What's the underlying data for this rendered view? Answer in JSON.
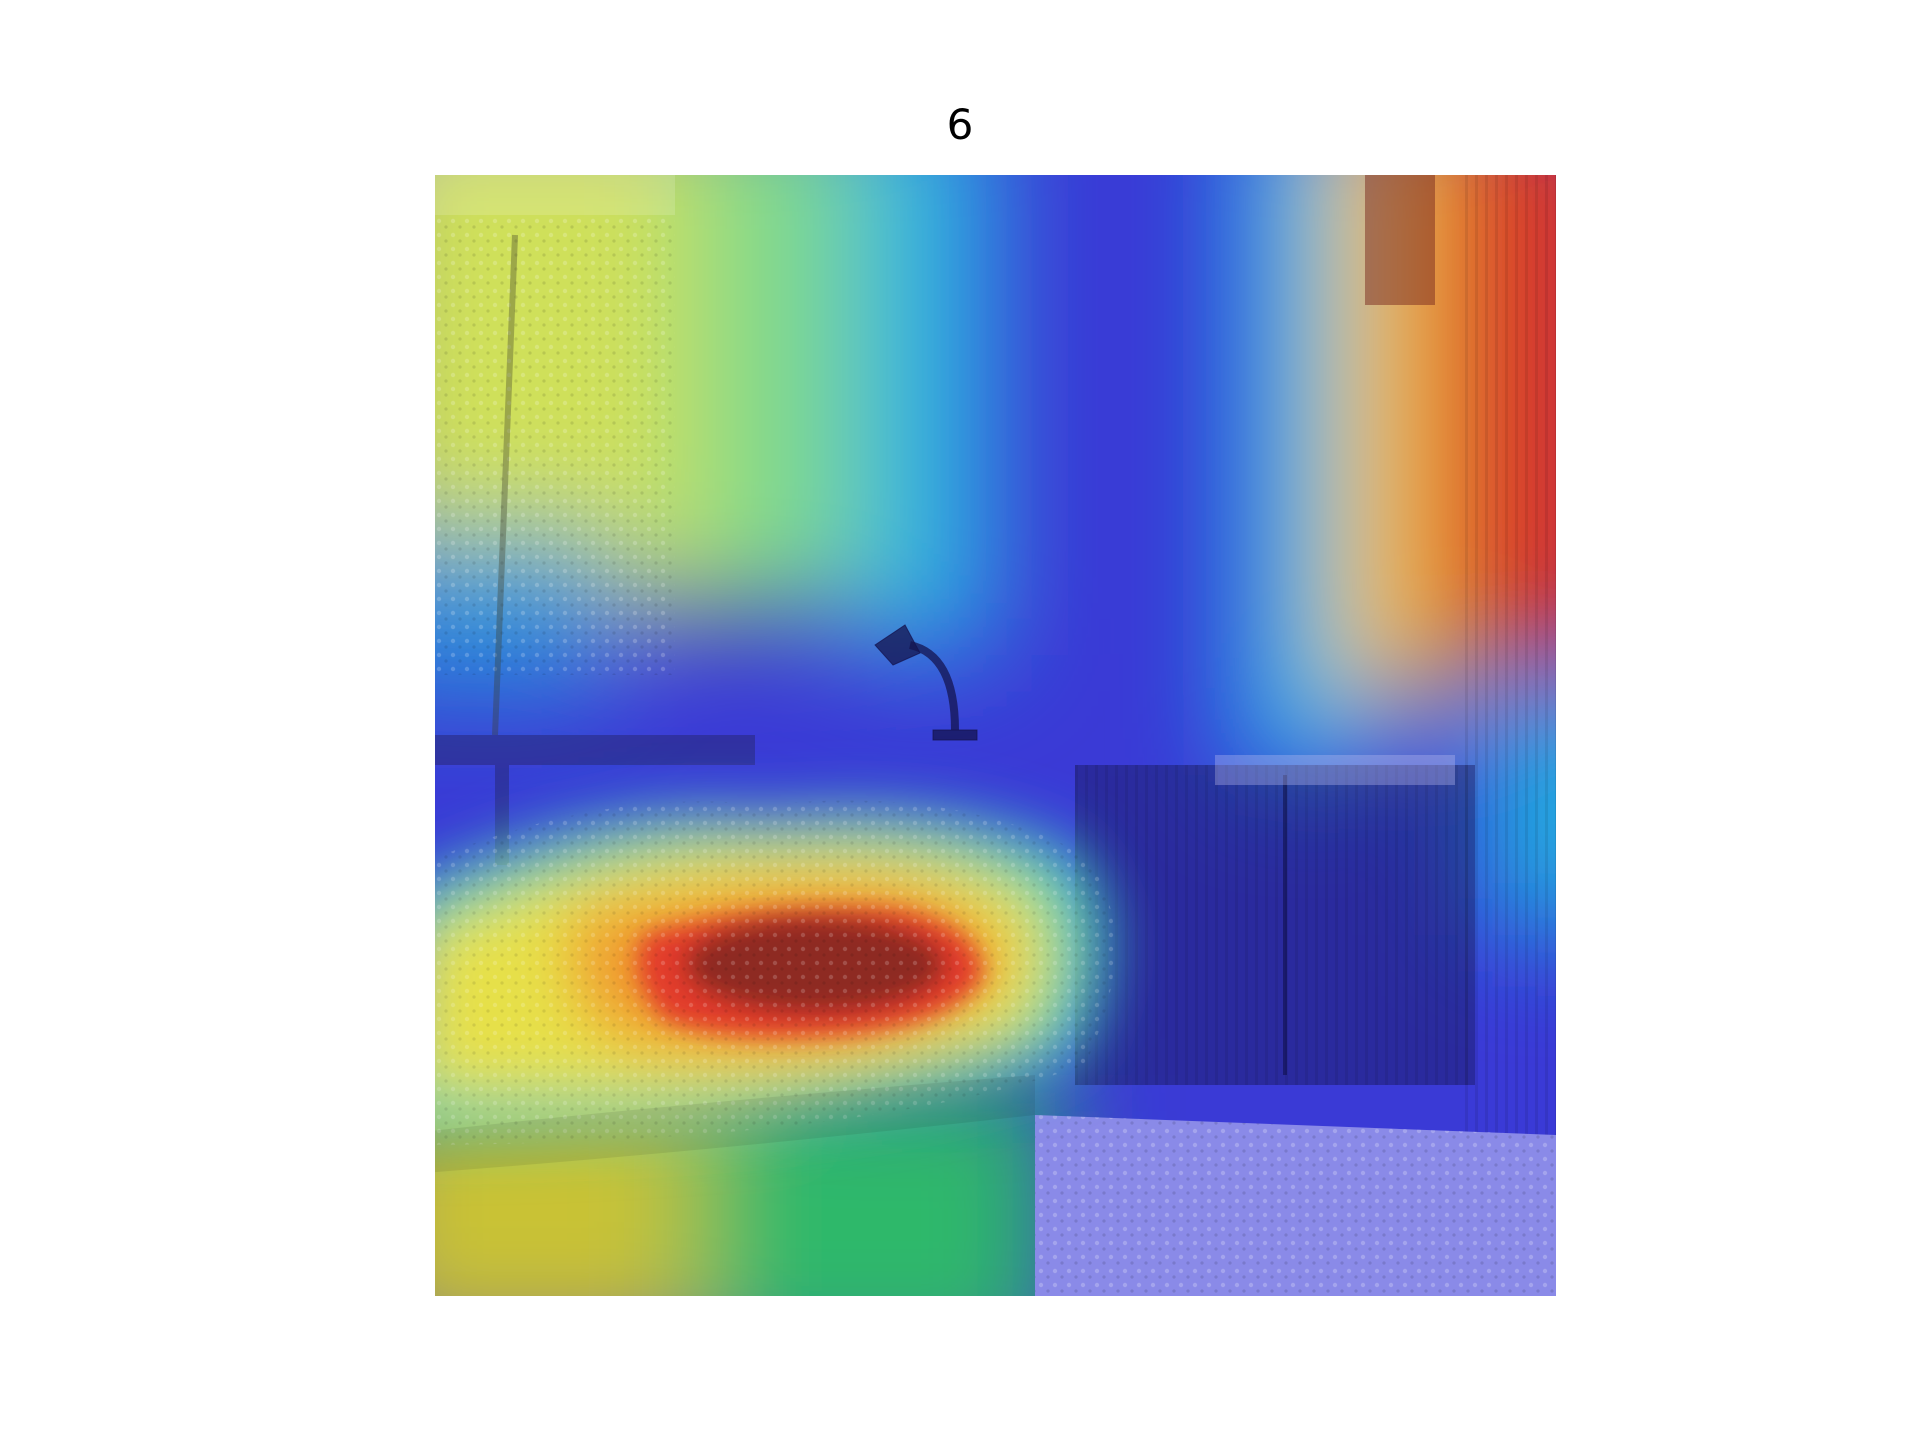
{
  "figure": {
    "title": "6",
    "image": {
      "description_icon": "attention-heatmap-overlay",
      "colormap": "jet",
      "colors": {
        "low": "#2f2fd0",
        "mid_low": "#19a7d8",
        "mid": "#3fcf6a",
        "mid_high": "#e9e24a",
        "high": "#e33a2a",
        "peak": "#8e2a22"
      }
    }
  }
}
